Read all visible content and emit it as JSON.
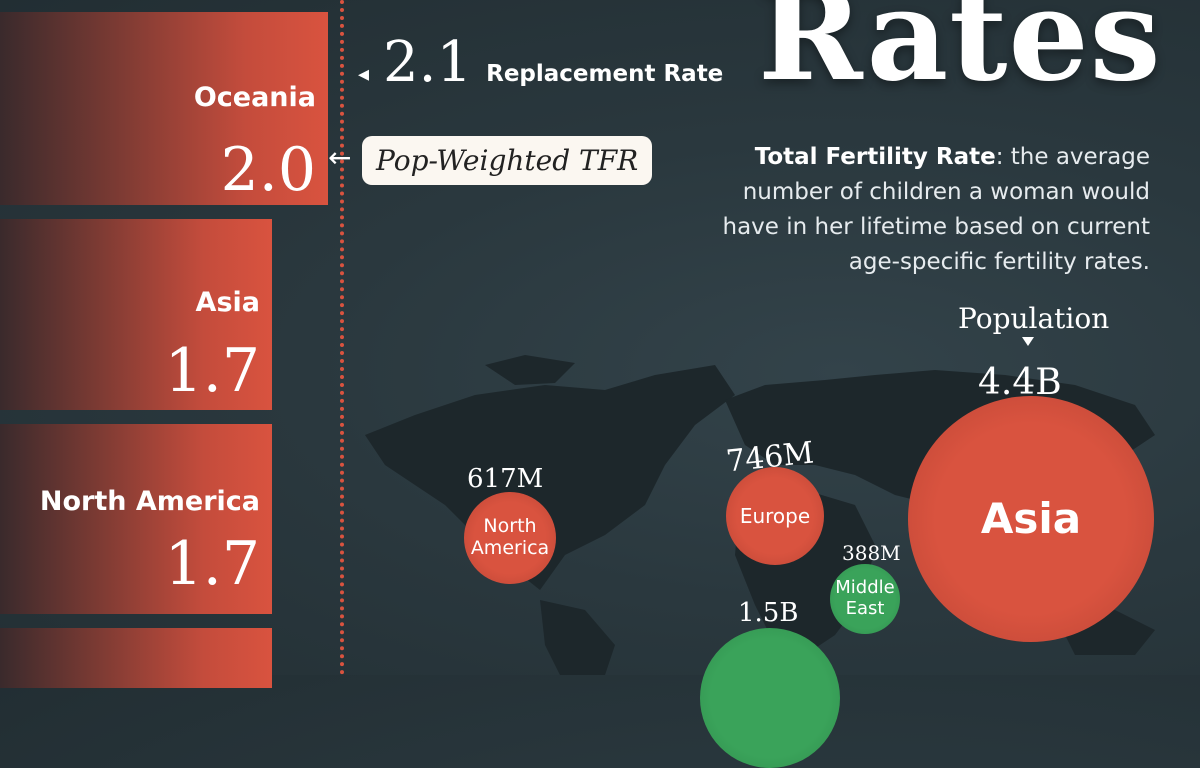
{
  "title": "Rates",
  "replacement": {
    "value": "2.1",
    "label": "Replacement Rate"
  },
  "tag": "Pop-Weighted TFR",
  "definition": {
    "term": "Total Fertility Rate",
    "text": ": the average number of children a woman would have in her lifetime based on current age-specific fertility rates."
  },
  "population_header": "Population",
  "colors": {
    "bar": "#d9533f",
    "above": "#3aa35a",
    "background": "#2a383e"
  },
  "chart_data": [
    {
      "type": "bar",
      "orientation": "horizontal",
      "reference_line": {
        "value": 2.1,
        "label": "Replacement Rate"
      },
      "categories": [
        "Oceania",
        "Asia",
        "North America",
        ""
      ],
      "values": [
        2.0,
        1.7,
        1.7,
        null
      ],
      "value_labels": [
        "2.0",
        "1.7",
        "1.7",
        ""
      ]
    },
    {
      "type": "scatter",
      "subtype": "bubble-map",
      "size_metric": "Population",
      "points": [
        {
          "name": "Asia",
          "population": "4.4B",
          "population_value": 4400000000.0,
          "color": "red"
        },
        {
          "name": "Europe",
          "population": "746M",
          "population_value": 746000000.0,
          "color": "red"
        },
        {
          "name": "North America",
          "population": "617M",
          "population_value": 617000000.0,
          "color": "red"
        },
        {
          "name": "Middle East",
          "population": "388M",
          "population_value": 388000000.0,
          "color": "green"
        },
        {
          "name": "",
          "population": "1.5B",
          "population_value": 1500000000.0,
          "color": "green"
        }
      ]
    }
  ]
}
